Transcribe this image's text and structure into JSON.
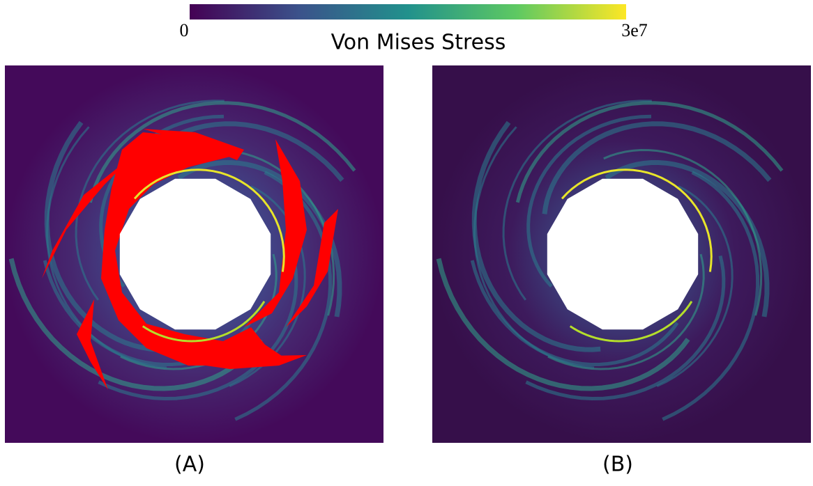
{
  "colorbar": {
    "label": "Von Mises Stress",
    "range": [
      0,
      30000000
    ],
    "ticks": [
      0,
      {
        "value": 30000000,
        "label": "3e7"
      }
    ]
  },
  "panels": [
    {
      "label": "(A)"
    },
    {
      "label": "(B)"
    }
  ]
}
